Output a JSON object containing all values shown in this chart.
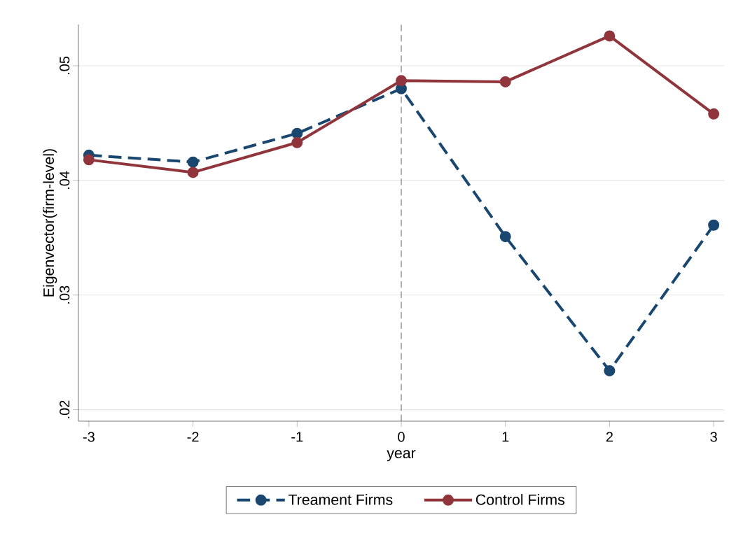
{
  "chart_data": {
    "type": "line",
    "xlabel": "year",
    "ylabel": "Eigenvector(firm-level)",
    "x": [
      -3,
      -2,
      -1,
      0,
      1,
      2,
      3
    ],
    "series": [
      {
        "name": "Treament Firms",
        "color": "#1a476f",
        "line_style": "dashed",
        "values": [
          0.0422,
          0.0416,
          0.0441,
          0.048,
          0.0351,
          0.0234,
          0.0361
        ]
      },
      {
        "name": "Control Firms",
        "color": "#90353b",
        "line_style": "solid",
        "values": [
          0.0418,
          0.0407,
          0.0433,
          0.0487,
          0.0486,
          0.0526,
          0.0458
        ]
      }
    ],
    "xlim": [
      -3.1,
      3.1
    ],
    "ylim": [
      0.019,
      0.0536
    ],
    "xticks": [
      -3,
      -2,
      -1,
      0,
      1,
      2,
      3
    ],
    "yticks": [
      {
        "value": 0.02,
        "label": ".02"
      },
      {
        "value": 0.03,
        "label": ".03"
      },
      {
        "value": 0.04,
        "label": ".04"
      },
      {
        "value": 0.05,
        "label": ".05"
      }
    ],
    "ref_lines": [
      {
        "axis": "x",
        "value": 0,
        "color": "#8c8c8c",
        "line_style": "dashed"
      }
    ],
    "grid": "y",
    "legend": "bottom",
    "marker": "circle"
  }
}
